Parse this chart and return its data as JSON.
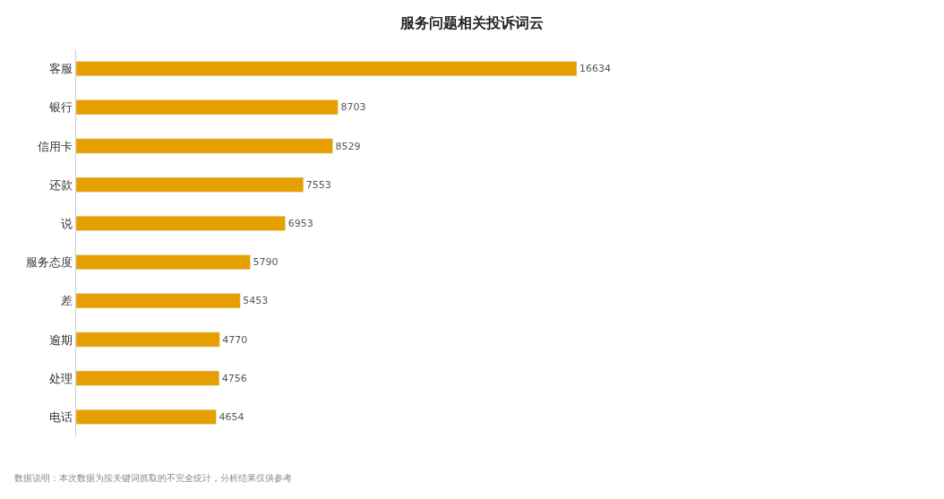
{
  "chart_data": {
    "type": "bar",
    "orientation": "horizontal",
    "title": "服务问题相关投诉词云",
    "categories": [
      "客服",
      "银行",
      "信用卡",
      "还款",
      "说",
      "服务态度",
      "差",
      "逾期",
      "处理",
      "电话"
    ],
    "values": [
      16634,
      8703,
      8529,
      7553,
      6953,
      5790,
      5453,
      4770,
      4756,
      4654
    ],
    "color": "#e69f00",
    "data_labels": true,
    "legend": false,
    "tick_labels": "y",
    "annotations": [
      "数据说明：本次数据为按关键词抓取的不完全统计，分析结果仅供参考"
    ]
  }
}
